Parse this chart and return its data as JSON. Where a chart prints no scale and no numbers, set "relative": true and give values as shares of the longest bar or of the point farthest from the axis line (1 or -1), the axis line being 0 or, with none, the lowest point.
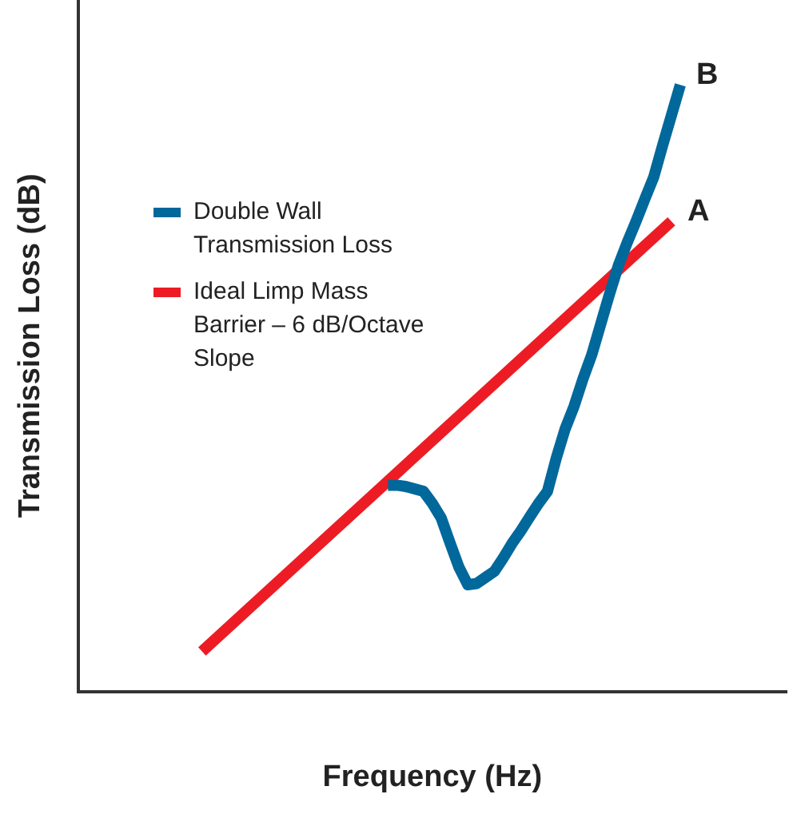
{
  "chart_data": {
    "type": "line",
    "relative": true,
    "xlabel": "Frequency (Hz)",
    "ylabel": "Transmission Loss (dB)",
    "legend": "top left",
    "grid": false,
    "marker": "none",
    "line_style": "solid",
    "categories": [
      null,
      null,
      null,
      null,
      null,
      null,
      null,
      null,
      null,
      null,
      null,
      null,
      null,
      null,
      null,
      null,
      null,
      null,
      null,
      null,
      null,
      null,
      null,
      null,
      null,
      null,
      null,
      null,
      null,
      null,
      null,
      null,
      null,
      null,
      null,
      null,
      null,
      null,
      null,
      null,
      null,
      null,
      null,
      null,
      null,
      null,
      null,
      null,
      null,
      null,
      null,
      null,
      null,
      null,
      null,
      null,
      null,
      null,
      null,
      null,
      null,
      null,
      null,
      null,
      null,
      null,
      null,
      null,
      null,
      null,
      null,
      null,
      null,
      null,
      null,
      null,
      null,
      null,
      null,
      null,
      null
    ],
    "series": [
      {
        "name": "Double Wall Transmission Loss",
        "color": "#00689b",
        "values": [
          null,
          null,
          null,
          null,
          null,
          null,
          null,
          null,
          null,
          null,
          null,
          null,
          null,
          null,
          null,
          null,
          null,
          null,
          null,
          null,
          null,
          null,
          null,
          null,
          null,
          null,
          null,
          null,
          null,
          null,
          null,
          null,
          null,
          null,
          null,
          0.34,
          0.34,
          0.338,
          0.334,
          0.33,
          0.31,
          0.286,
          0.245,
          0.205,
          0.176,
          0.178,
          0.188,
          0.198,
          0.22,
          0.244,
          0.265,
          0.288,
          0.31,
          0.33,
          0.385,
          0.433,
          0.47,
          0.515,
          0.555,
          0.605,
          0.655,
          0.702,
          0.74,
          0.775,
          0.812,
          0.848,
          0.9,
          0.95,
          1.0,
          null,
          null,
          null,
          null,
          null,
          null,
          null,
          null,
          null,
          null,
          null,
          null
        ]
      },
      {
        "name": "Ideal Limp Mass Barrier – 6 dB/Octave Slope",
        "color": "#ed1c24",
        "values": [
          null,
          null,
          null,
          null,
          null,
          null,
          null,
          null,
          null,
          null,
          null,
          null,
          null,
          null,
          0.066,
          null,
          null,
          null,
          null,
          null,
          null,
          null,
          null,
          null,
          null,
          null,
          null,
          null,
          null,
          null,
          null,
          null,
          null,
          null,
          null,
          null,
          null,
          null,
          null,
          null,
          null,
          null,
          null,
          null,
          null,
          null,
          null,
          null,
          null,
          null,
          null,
          null,
          null,
          null,
          null,
          null,
          null,
          null,
          null,
          null,
          null,
          null,
          null,
          null,
          null,
          null,
          null,
          0.775,
          null,
          null,
          null,
          null,
          null,
          null,
          null,
          null,
          null,
          null,
          null,
          null,
          null
        ]
      }
    ],
    "annotations": [
      "B",
      "A"
    ]
  }
}
